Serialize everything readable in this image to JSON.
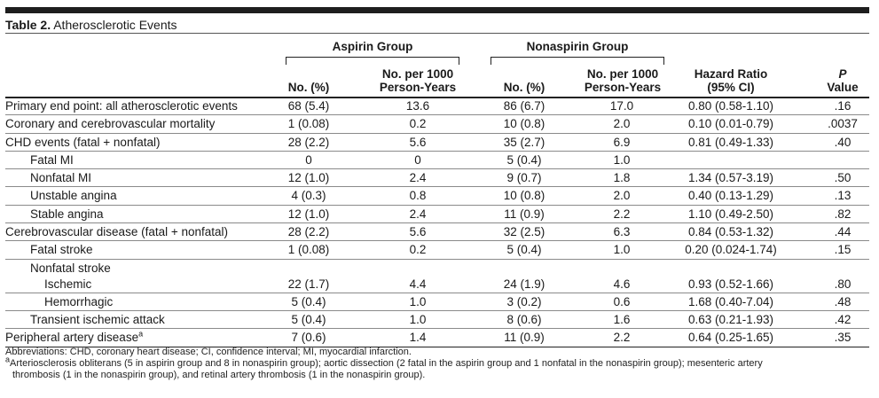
{
  "title": {
    "label": "Table 2.",
    "text": "Atherosclerotic Events"
  },
  "groups": {
    "aspirin": "Aspirin Group",
    "nonaspirin": "Nonaspirin Group"
  },
  "headers": {
    "no_pct": "No. (%)",
    "per1000_a": "No. per 1000",
    "per1000_b": "Person-Years",
    "hr_a": "Hazard Ratio",
    "hr_b": "(95% CI)",
    "p_a": "P",
    "p_b": "Value"
  },
  "rows": [
    {
      "label": "Primary end point: all atherosclerotic events",
      "a_n": "68 (5.4)",
      "a_r": "13.6",
      "n_n": "86 (6.7)",
      "n_r": "17.0",
      "hr": "0.80 (0.58-1.10)",
      "p": ".16"
    },
    {
      "label": "Coronary and cerebrovascular mortality",
      "a_n": "1 (0.08)",
      "a_r": "0.2",
      "n_n": "10 (0.8)",
      "n_r": "2.0",
      "hr": "0.10 (0.01-0.79)",
      "p": ".0037"
    },
    {
      "label": "CHD events (fatal + nonfatal)",
      "a_n": "28 (2.2)",
      "a_r": "5.6",
      "n_n": "35 (2.7)",
      "n_r": "6.9",
      "hr": "0.81 (0.49-1.33)",
      "p": ".40"
    },
    {
      "label": "Fatal MI",
      "a_n": "0",
      "a_r": "0",
      "n_n": "5 (0.4)",
      "n_r": "1.0",
      "hr": "",
      "p": ""
    },
    {
      "label": "Nonfatal MI",
      "a_n": "12 (1.0)",
      "a_r": "2.4",
      "n_n": "9 (0.7)",
      "n_r": "1.8",
      "hr": "1.34 (0.57-3.19)",
      "p": ".50"
    },
    {
      "label": "Unstable angina",
      "a_n": "4 (0.3)",
      "a_r": "0.8",
      "n_n": "10 (0.8)",
      "n_r": "2.0",
      "hr": "0.40 (0.13-1.29)",
      "p": ".13"
    },
    {
      "label": "Stable angina",
      "a_n": "12 (1.0)",
      "a_r": "2.4",
      "n_n": "11 (0.9)",
      "n_r": "2.2",
      "hr": "1.10 (0.49-2.50)",
      "p": ".82"
    },
    {
      "label": "Cerebrovascular disease (fatal + nonfatal)",
      "a_n": "28 (2.2)",
      "a_r": "5.6",
      "n_n": "32 (2.5)",
      "n_r": "6.3",
      "hr": "0.84 (0.53-1.32)",
      "p": ".44"
    },
    {
      "label": "Fatal stroke",
      "a_n": "1 (0.08)",
      "a_r": "0.2",
      "n_n": "5 (0.4)",
      "n_r": "1.0",
      "hr": "0.20 (0.024-1.74)",
      "p": ".15"
    },
    {
      "label": "Nonfatal stroke",
      "sub": "Ischemic",
      "a_n": "22 (1.7)",
      "a_r": "4.4",
      "n_n": "24 (1.9)",
      "n_r": "4.6",
      "hr": "0.93 (0.52-1.66)",
      "p": ".80"
    },
    {
      "label": "Hemorrhagic",
      "a_n": "5 (0.4)",
      "a_r": "1.0",
      "n_n": "3 (0.2)",
      "n_r": "0.6",
      "hr": "1.68 (0.40-7.04)",
      "p": ".48"
    },
    {
      "label": "Transient ischemic attack",
      "a_n": "5 (0.4)",
      "a_r": "1.0",
      "n_n": "8 (0.6)",
      "n_r": "1.6",
      "hr": "0.63 (0.21-1.93)",
      "p": ".42"
    },
    {
      "label": "Peripheral artery disease",
      "sup": "a",
      "a_n": "7 (0.6)",
      "a_r": "1.4",
      "n_n": "11 (0.9)",
      "n_r": "2.2",
      "hr": "0.64 (0.25-1.65)",
      "p": ".35"
    }
  ],
  "footnotes": {
    "abbreviations": "Abbreviations: CHD, coronary heart disease; CI, confidence interval; MI, myocardial infarction.",
    "note_mark": "a",
    "note_line1": "Arteriosclerosis obliterans (5 in aspirin group and 8 in nonaspirin group); aortic dissection (2 fatal in the aspirin group and 1 nonfatal in the nonaspirin group); mesenteric artery",
    "note_line2": "thrombosis (1 in the nonaspirin group), and retinal artery thrombosis (1 in the nonaspirin group)."
  }
}
